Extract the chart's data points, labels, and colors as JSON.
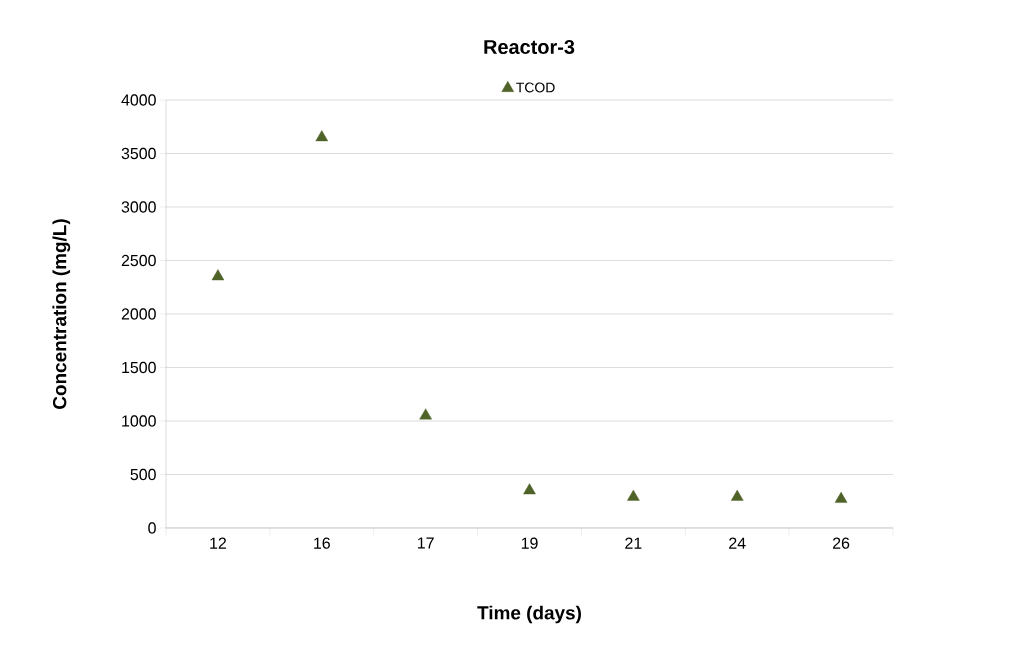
{
  "chart_data": {
    "type": "scatter",
    "title": "Reactor-3",
    "xlabel": "Time (days)",
    "ylabel": "Concentration (mg/L)",
    "categories": [
      "12",
      "16",
      "17",
      "19",
      "21",
      "24",
      "26"
    ],
    "series": [
      {
        "name": "TCOD",
        "color": "#4f6228",
        "values": [
          2350,
          3650,
          1050,
          350,
          290,
          290,
          270
        ]
      }
    ],
    "ylim": [
      0,
      4000
    ],
    "yticks": [
      0,
      500,
      1000,
      1500,
      2000,
      2500,
      3000,
      3500,
      4000
    ],
    "grid": "y",
    "legend": "top",
    "marker": "triangle"
  }
}
